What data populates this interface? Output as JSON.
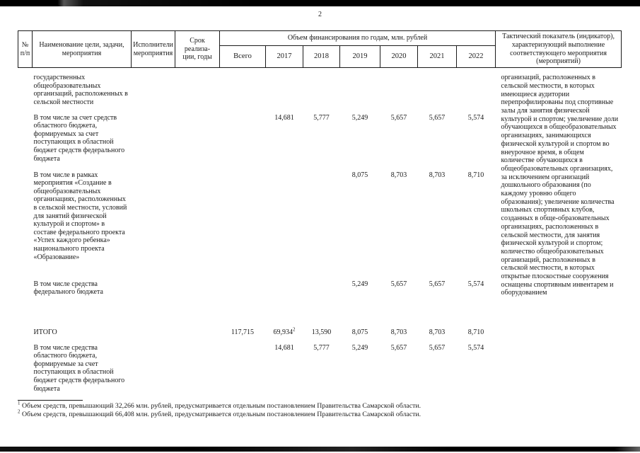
{
  "page": {
    "number": "2"
  },
  "table": {
    "header": {
      "col_num": "№\nп/п",
      "col_name": "Наименование цели, задачи, мероприятия",
      "col_executors": "Исполнители мероприятия",
      "col_term": "Срок\nреализа-\nции, годы",
      "col_finance": "Объем финансирования по годам, млн. рублей",
      "col_indicator": "Тактический показатель (индикатор), характеризующий выполнение соответствующего мероприятия (мероприятий)",
      "finance_subcols": [
        "Всего",
        "2017",
        "2018",
        "2019",
        "2020",
        "2021",
        "2022"
      ]
    },
    "rows": [
      {
        "label": "государственных общеобразовательных организаций, расположенных в сельской местности",
        "values": [
          "",
          "",
          "",
          "",
          "",
          "",
          ""
        ]
      },
      {
        "label": "В том числе за счет средств областного бюджета, формируемых за счет поступающих в областной бюджет средств федерального бюджета",
        "values": [
          "",
          "14,681",
          "5,777",
          "5,249",
          "5,657",
          "5,657",
          "5,574"
        ]
      },
      {
        "label": "В том числе в рамках мероприятия «Создание в общеобразовательных организациях, расположенных в сельской местности, условий для занятий физической культурой и спортом» в составе федерального проекта «Успех каждого ребенка» национального проекта «Образование»",
        "values": [
          "",
          "",
          "",
          "8,075",
          "8,703",
          "8,703",
          "8,710"
        ]
      },
      {
        "label": "В том числе средства федерального бюджета",
        "values": [
          "",
          "",
          "",
          "5,249",
          "5,657",
          "5,657",
          "5,574"
        ]
      },
      {
        "label": "ИТОГО",
        "values": [
          "117,715",
          {
            "v": "69,934",
            "sup": "2"
          },
          "13,590",
          "8,075",
          "8,703",
          "8,703",
          "8,710"
        ]
      },
      {
        "label": "В том числе средства областного бюджета, формируемые за счет поступающих в областной бюджет средств федерального бюджета",
        "values": [
          "",
          "14,681",
          "5,777",
          "5,249",
          "5,657",
          "5,657",
          "5,574"
        ]
      }
    ],
    "indicator_text": "организаций, расположенных в сельской местности, в которых имеющиеся аудитории перепрофилированы под спортивные залы для занятия физической культурой и спортом; увеличение доли обучающихся в общеобразовательных организациях, занимающихся физической культурой и спортом во внеурочное время, в общем количестве обучающихся в общеобразовательных организациях, за исключением организаций дошкольного образования (по каждому уровню общего образования); увеличение количества школьных спортивных клубов, созданных в обще-образовательных организациях, расположенных  в сельской местности, для занятия физической культурой и спортом; количество общеобразовательных организаций, расположенных в сельской местности, в которых открытые плоскостные сооружения оснащены спортивным инвентарем и оборудованием"
  },
  "footnotes": [
    {
      "marker": "1",
      "text": "Объем средств, превышающий 32,266 млн. рублей, предусматривается отдельным постановлением Правительства Самарской области."
    },
    {
      "marker": "2",
      "text": "Объем средств, превышающий 66,408 млн. рублей, предусматривается отдельным постановлением Правительства Самарской области."
    }
  ],
  "colors": {
    "ink": "#1a1a1a",
    "paper": "#ffffff"
  }
}
